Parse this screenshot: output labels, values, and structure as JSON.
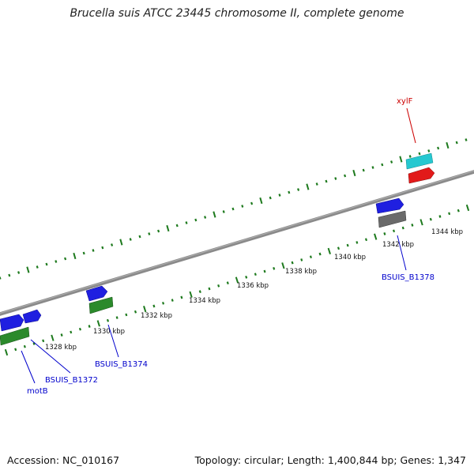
{
  "title": "Brucella suis ATCC 23445 chromosome II, complete genome",
  "footer": {
    "accession": "Accession: NC_010167",
    "summary": "Topology: circular; Length: 1,400,844 bp; Genes: 1,347"
  },
  "colors": {
    "backbone": "#8a8a8a",
    "tick": "#1e7a1e",
    "gene_blue": "#1f1fe0",
    "gene_green": "#2b8a2b",
    "gene_cyan": "#25c8d0",
    "gene_red": "#e21a1a",
    "gene_gray": "#6a6a6a",
    "label_blue": "#0000cc",
    "label_red": "#cc0000"
  },
  "scale_labels": [
    "1328 kbp",
    "1330 kbp",
    "1332 kbp",
    "1334 kbp",
    "1336 kbp",
    "1338 kbp",
    "1340 kbp",
    "1342 kbp",
    "1344 kbp"
  ],
  "gene_labels": [
    {
      "text": "motB",
      "color": "blue"
    },
    {
      "text": "BSUIS_B1372",
      "color": "blue"
    },
    {
      "text": "BSUIS_B1374",
      "color": "blue"
    },
    {
      "text": "BSUIS_B1378",
      "color": "blue"
    },
    {
      "text": "xylF",
      "color": "red"
    }
  ]
}
